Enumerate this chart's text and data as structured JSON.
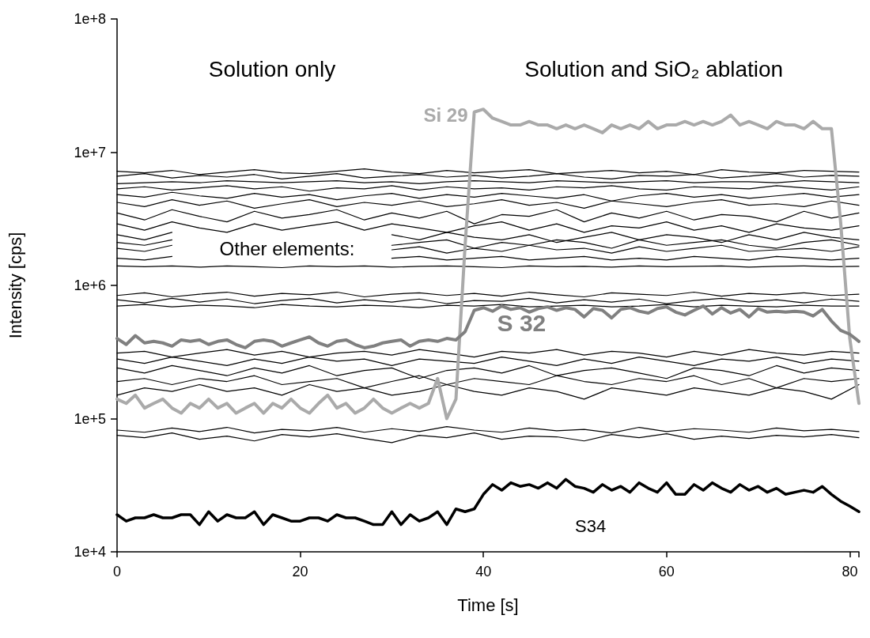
{
  "chart_data": {
    "type": "line",
    "xlabel": "Time [s]",
    "ylabel": "Intensity [cps]",
    "log": "y",
    "xlim": [
      0,
      81
    ],
    "xticks": [
      0,
      20,
      40,
      60,
      80
    ],
    "ylim": [
      10000,
      100000000
    ],
    "yticks": [
      {
        "value": 10000,
        "label": "1e+4"
      },
      {
        "value": 100000,
        "label": "1e+5"
      },
      {
        "value": 1000000,
        "label": "1e+6"
      },
      {
        "value": 10000000,
        "label": "1e+7"
      },
      {
        "value": 100000000,
        "label": "1e+8"
      }
    ],
    "grid": false,
    "legend": false,
    "marker": "none",
    "line_style": "solid",
    "annotations": [
      "Solution only",
      "Solution and SiO₂ ablation",
      "Other elements:"
    ],
    "x": [
      0,
      3,
      6,
      9,
      12,
      15,
      18,
      21,
      24,
      27,
      30,
      33,
      36,
      39,
      42,
      45,
      48,
      51,
      54,
      57,
      60,
      63,
      66,
      69,
      72,
      75,
      78,
      81
    ],
    "series": [
      {
        "color": "#000000",
        "values": [
          7200000.0,
          7000000.0,
          7300000.0,
          6800000.0,
          7100000.0,
          7400000.0,
          7000000.0,
          6900000.0,
          7200000.0,
          7500000.0,
          7100000.0,
          6900000.0,
          7300000.0,
          7000000.0,
          7200000.0,
          7400000.0,
          6900000.0,
          7100000.0,
          7300000.0,
          7000000.0,
          7200000.0,
          6800000.0,
          7400000.0,
          7100000.0,
          7000000.0,
          7300000.0,
          7200000.0,
          7100000.0
        ]
      },
      {
        "color": "#000000",
        "values": [
          6600000.0,
          6900000.0,
          6400000.0,
          6700000.0,
          6500000.0,
          6800000.0,
          6300000.0,
          6600000.0,
          6900000.0,
          6400000.0,
          6600000.0,
          6800000.0,
          6500000.0,
          6700000.0,
          6400000.0,
          6600000.0,
          6900000.0,
          6500000.0,
          6300000.0,
          6700000.0,
          6600000.0,
          6800000.0,
          6400000.0,
          6600000.0,
          6900000.0,
          6500000.0,
          6700000.0,
          6600000.0
        ]
      },
      {
        "color": "#000000",
        "values": [
          5800000.0,
          5900000.0,
          6000000.0,
          5900000.0,
          6100000.0,
          6000000.0,
          5900000.0,
          6000000.0,
          6100000.0,
          5900000.0,
          6000000.0,
          5800000.0,
          6000000.0,
          6100000.0,
          6000000.0,
          5900000.0,
          6100000.0,
          6000000.0,
          5900000.0,
          6000000.0,
          6100000.0,
          5900000.0,
          6000000.0,
          6000000.0,
          5900000.0,
          6100000.0,
          6000000.0,
          5900000.0
        ]
      },
      {
        "color": "#000000",
        "values": [
          5300000.0,
          5500000.0,
          5200000.0,
          5400000.0,
          5600000.0,
          5300000.0,
          5500000.0,
          5100000.0,
          5400000.0,
          5300000.0,
          5600000.0,
          5200000.0,
          5500000.0,
          5300000.0,
          5400000.0,
          5200000.0,
          5500000.0,
          5400000.0,
          5600000.0,
          5300000.0,
          5200000.0,
          5500000.0,
          5400000.0,
          5300000.0,
          5600000.0,
          5400000.0,
          5200000.0,
          5500000.0
        ]
      },
      {
        "color": "#000000",
        "values": [
          4800000.0,
          4600000.0,
          5000000.0,
          4700000.0,
          4500000.0,
          4900000.0,
          4600000.0,
          4800000.0,
          4400000.0,
          4700000.0,
          4900000.0,
          4500000.0,
          4800000.0,
          4600000.0,
          4900000.0,
          4700000.0,
          4500000.0,
          4800000.0,
          4300000.0,
          4700000.0,
          4900000.0,
          4600000.0,
          4800000.0,
          4500000.0,
          4700000.0,
          4900000.0,
          4600000.0,
          4800000.0
        ]
      },
      {
        "color": "#000000",
        "values": [
          4200000.0,
          3900000.0,
          4400000.0,
          4000000.0,
          4300000.0,
          3800000.0,
          4100000.0,
          4400000.0,
          3900000.0,
          4200000.0,
          4000000.0,
          4300000.0,
          3900000.0,
          4100000.0,
          4400000.0,
          4000000.0,
          4200000.0,
          3800000.0,
          4300000.0,
          4100000.0,
          3900000.0,
          4200000.0,
          4400000.0,
          4000000.0,
          4100000.0,
          3900000.0,
          4300000.0,
          4000000.0
        ]
      },
      {
        "color": "#000000",
        "values": [
          3500000.0,
          3100000.0,
          3700000.0,
          3300000.0,
          3000000.0,
          3600000.0,
          3200000.0,
          3400000.0,
          3700000.0,
          3100000.0,
          3500000.0,
          3200000.0,
          3600000.0,
          2900000.0,
          3400000.0,
          3300000.0,
          3700000.0,
          3000000.0,
          3500000.0,
          3200000.0,
          3600000.0,
          3100000.0,
          3400000.0,
          3300000.0,
          3000000.0,
          3600000.0,
          3200000.0,
          3500000.0
        ]
      },
      {
        "color": "#000000",
        "values": [
          2900000.0,
          2600000.0,
          3000000.0,
          2700000.0,
          2500000.0,
          2900000.0,
          2600000.0,
          2800000.0,
          3000000.0,
          2600000.0,
          2900000.0,
          2700000.0,
          2500000.0,
          2800000.0,
          3000000.0,
          2600000.0,
          2900000.0,
          2500000.0,
          2800000.0,
          2700000.0,
          3000000.0,
          2600000.0,
          2800000.0,
          2500000.0,
          2900000.0,
          2700000.0,
          2600000.0,
          2800000.0
        ]
      },
      {
        "color": "#000000",
        "values": [
          2400000.0,
          2200000.0,
          2500000.0,
          null,
          null,
          null,
          null,
          null,
          null,
          null,
          2400000.0,
          2200000.0,
          2500000.0,
          2300000.0,
          2200000.0,
          2400000.0,
          2100000.0,
          2300000.0,
          2500000.0,
          2200000.0,
          2400000.0,
          2300000.0,
          2100000.0,
          2400000.0,
          2200000.0,
          2500000.0,
          2300000.0,
          2200000.0
        ]
      },
      {
        "color": "#000000",
        "values": [
          2100000.0,
          2000000.0,
          2200000.0,
          null,
          null,
          null,
          null,
          null,
          null,
          null,
          2000000.0,
          2100000.0,
          2200000.0,
          1900000.0,
          2100000.0,
          2000000.0,
          2200000.0,
          2100000.0,
          1900000.0,
          2200000.0,
          2000000.0,
          2100000.0,
          2200000.0,
          2000000.0,
          1900000.0,
          2100000.0,
          2200000.0,
          2000000.0
        ]
      },
      {
        "color": "#000000",
        "values": [
          1900000.0,
          1800000.0,
          2000000.0,
          null,
          null,
          null,
          null,
          null,
          null,
          null,
          1850000.0,
          1950000.0,
          1750000.0,
          1900000.0,
          1800000.0,
          2000000.0,
          1850000.0,
          1900000.0,
          1750000.0,
          1950000.0,
          1800000.0,
          1900000.0,
          2000000.0,
          1800000.0,
          1850000.0,
          1900000.0,
          1800000.0,
          1950000.0
        ]
      },
      {
        "color": "#000000",
        "values": [
          1600000.0,
          1550000.0,
          1650000.0,
          null,
          null,
          null,
          null,
          null,
          null,
          null,
          1600000.0,
          1650000.0,
          1550000.0,
          1600000.0,
          1650000.0,
          1550000.0,
          1600000.0,
          1650000.0,
          1550000.0,
          1600000.0,
          1550000.0,
          1650000.0,
          1600000.0,
          1550000.0,
          1650000.0,
          1600000.0,
          1550000.0,
          1600000.0
        ]
      },
      {
        "color": "#000000",
        "values": [
          1400000.0,
          1380000.0,
          1400000.0,
          1370000.0,
          1400000.0,
          1380000.0,
          1360000.0,
          1400000.0,
          1380000.0,
          1400000.0,
          1370000.0,
          1390000.0,
          1400000.0,
          1380000.0,
          1360000.0,
          1400000.0,
          1380000.0,
          1390000.0,
          1370000.0,
          1400000.0,
          1380000.0,
          1390000.0,
          1400000.0,
          1370000.0,
          1390000.0,
          1400000.0,
          1380000.0,
          1390000.0
        ]
      },
      {
        "color": "#000000",
        "values": [
          840000.0,
          880000.0,
          820000.0,
          860000.0,
          890000.0,
          830000.0,
          870000.0,
          850000.0,
          890000.0,
          820000.0,
          860000.0,
          880000.0,
          840000.0,
          870000.0,
          830000.0,
          890000.0,
          850000.0,
          820000.0,
          880000.0,
          860000.0,
          840000.0,
          890000.0,
          830000.0,
          870000.0,
          850000.0,
          880000.0,
          840000.0,
          860000.0
        ]
      },
      {
        "color": "#000000",
        "values": [
          780000.0,
          740000.0,
          800000.0,
          750000.0,
          790000.0,
          730000.0,
          770000.0,
          800000.0,
          740000.0,
          780000.0,
          750000.0,
          790000.0,
          730000.0,
          770000.0,
          760000.0,
          800000.0,
          740000.0,
          780000.0,
          750000.0,
          790000.0,
          730000.0,
          770000.0,
          800000.0,
          750000.0,
          780000.0,
          740000.0,
          790000.0,
          760000.0
        ]
      },
      {
        "color": "#000000",
        "values": [
          700000.0,
          720000.0,
          690000.0,
          710000.0,
          700000.0,
          680000.0,
          720000.0,
          700000.0,
          690000.0,
          710000.0,
          700000.0,
          680000.0,
          710000.0,
          700000.0,
          720000.0,
          690000.0,
          700000.0,
          710000.0,
          690000.0,
          700000.0,
          720000.0,
          690000.0,
          710000.0,
          700000.0,
          690000.0,
          710000.0,
          700000.0,
          700000.0
        ]
      },
      {
        "color": "#000000",
        "values": [
          310000.0,
          320000.0,
          290000.0,
          310000.0,
          330000.0,
          300000.0,
          320000.0,
          290000.0,
          310000.0,
          320000.0,
          300000.0,
          330000.0,
          310000.0,
          290000.0,
          320000.0,
          310000.0,
          330000.0,
          300000.0,
          320000.0,
          310000.0,
          290000.0,
          320000.0,
          300000.0,
          330000.0,
          310000.0,
          300000.0,
          320000.0,
          310000.0
        ]
      },
      {
        "color": "#000000",
        "values": [
          280000.0,
          260000.0,
          290000.0,
          270000.0,
          250000.0,
          280000.0,
          260000.0,
          290000.0,
          270000.0,
          280000.0,
          250000.0,
          280000.0,
          270000.0,
          260000.0,
          290000.0,
          270000.0,
          250000.0,
          280000.0,
          260000.0,
          290000.0,
          270000.0,
          250000.0,
          280000.0,
          270000.0,
          290000.0,
          260000.0,
          280000.0,
          270000.0
        ]
      },
      {
        "color": "#000000",
        "values": [
          240000.0,
          220000.0,
          250000.0,
          230000.0,
          210000.0,
          240000.0,
          220000.0,
          250000.0,
          210000.0,
          230000.0,
          240000.0,
          200000.0,
          230000.0,
          240000.0,
          220000.0,
          250000.0,
          210000.0,
          230000.0,
          240000.0,
          220000.0,
          200000.0,
          240000.0,
          230000.0,
          210000.0,
          250000.0,
          220000.0,
          240000.0,
          230000.0
        ]
      },
      {
        "color": "#000000",
        "values": [
          190000.0,
          200000.0,
          180000.0,
          200000.0,
          190000.0,
          210000.0,
          180000.0,
          190000.0,
          200000.0,
          170000.0,
          190000.0,
          210000.0,
          180000.0,
          200000.0,
          190000.0,
          180000.0,
          210000.0,
          190000.0,
          180000.0,
          200000.0,
          190000.0,
          210000.0,
          180000.0,
          200000.0,
          170000.0,
          200000.0,
          190000.0,
          200000.0
        ]
      },
      {
        "color": "#000000",
        "values": [
          150000.0,
          170000.0,
          160000.0,
          180000.0,
          160000.0,
          170000.0,
          150000.0,
          180000.0,
          160000.0,
          170000.0,
          150000.0,
          160000.0,
          180000.0,
          160000.0,
          150000.0,
          170000.0,
          160000.0,
          140000.0,
          170000.0,
          160000.0,
          150000.0,
          170000.0,
          160000.0,
          150000.0,
          170000.0,
          160000.0,
          140000.0,
          180000.0
        ]
      },
      {
        "color": "#000000",
        "values": [
          82000.0,
          79000.0,
          85000.0,
          80000.0,
          86000.0,
          78000.0,
          83000.0,
          81000.0,
          86000.0,
          79000.0,
          84000.0,
          80000.0,
          87000.0,
          82000.0,
          79000.0,
          85000.0,
          81000.0,
          83000.0,
          78000.0,
          86000.0,
          80000.0,
          84000.0,
          82000.0,
          79000.0,
          85000.0,
          81000.0,
          83000.0,
          80000.0
        ]
      },
      {
        "color": "#000000",
        "values": [
          75000.0,
          72000.0,
          78000.0,
          70000.0,
          74000.0,
          68000.0,
          76000.0,
          73000.0,
          77000.0,
          71000.0,
          66000.0,
          75000.0,
          72000.0,
          78000.0,
          70000.0,
          74000.0,
          73000.0,
          68000.0,
          76000.0,
          72000.0,
          77000.0,
          70000.0,
          74000.0,
          71000.0,
          75000.0,
          73000.0,
          76000.0,
          72000.0
        ]
      },
      {
        "name": "Si 29",
        "color": "#aaaaaa",
        "x": [
          0,
          1,
          2,
          3,
          4,
          5,
          6,
          7,
          8,
          9,
          10,
          11,
          12,
          13,
          14,
          15,
          16,
          17,
          18,
          19,
          20,
          21,
          22,
          23,
          24,
          25,
          26,
          27,
          28,
          29,
          30,
          31,
          32,
          33,
          34,
          35,
          36,
          37,
          38,
          39,
          40,
          41,
          42,
          43,
          44,
          45,
          46,
          47,
          48,
          49,
          50,
          51,
          52,
          53,
          54,
          55,
          56,
          57,
          58,
          59,
          60,
          61,
          62,
          63,
          64,
          65,
          66,
          67,
          68,
          69,
          70,
          71,
          72,
          73,
          74,
          75,
          76,
          77,
          78,
          79,
          80,
          81
        ],
        "values": [
          140000.0,
          130000.0,
          150000.0,
          120000.0,
          130000.0,
          140000.0,
          120000.0,
          110000.0,
          130000.0,
          120000.0,
          140000.0,
          120000.0,
          130000.0,
          110000.0,
          120000.0,
          130000.0,
          110000.0,
          130000.0,
          120000.0,
          140000.0,
          120000.0,
          110000.0,
          130000.0,
          150000.0,
          120000.0,
          130000.0,
          110000.0,
          120000.0,
          140000.0,
          120000.0,
          110000.0,
          120000.0,
          130000.0,
          120000.0,
          130000.0,
          200000.0,
          100000.0,
          140000.0,
          2000000.0,
          20000000.0,
          21000000.0,
          18000000.0,
          17000000.0,
          16000000.0,
          16000000.0,
          17000000.0,
          16000000.0,
          16000000.0,
          15000000.0,
          16000000.0,
          15000000.0,
          16000000.0,
          15000000.0,
          14000000.0,
          16000000.0,
          15000000.0,
          16000000.0,
          15000000.0,
          17000000.0,
          15000000.0,
          16000000.0,
          16000000.0,
          17000000.0,
          16000000.0,
          17000000.0,
          16000000.0,
          17000000.0,
          19000000.0,
          16000000.0,
          17000000.0,
          16000000.0,
          15000000.0,
          17000000.0,
          16000000.0,
          16000000.0,
          15000000.0,
          17000000.0,
          15000000.0,
          15000000.0,
          3000000.0,
          400000.0,
          130000.0
        ]
      },
      {
        "name": "S 32",
        "color": "#808080",
        "x": [
          0,
          1,
          2,
          3,
          4,
          5,
          6,
          7,
          8,
          9,
          10,
          11,
          12,
          13,
          14,
          15,
          16,
          17,
          18,
          19,
          20,
          21,
          22,
          23,
          24,
          25,
          26,
          27,
          28,
          29,
          30,
          31,
          32,
          33,
          34,
          35,
          36,
          37,
          38,
          39,
          40,
          41,
          42,
          43,
          44,
          45,
          46,
          47,
          48,
          49,
          50,
          51,
          52,
          53,
          54,
          55,
          56,
          57,
          58,
          59,
          60,
          61,
          62,
          63,
          64,
          65,
          66,
          67,
          68,
          69,
          70,
          71,
          72,
          73,
          74,
          75,
          76,
          77,
          78,
          79,
          80,
          81
        ],
        "values": [
          400000.0,
          360000.0,
          420000.0,
          370000.0,
          380000.0,
          370000.0,
          350000.0,
          390000.0,
          380000.0,
          390000.0,
          360000.0,
          380000.0,
          390000.0,
          360000.0,
          340000.0,
          380000.0,
          390000.0,
          380000.0,
          350000.0,
          370000.0,
          390000.0,
          410000.0,
          370000.0,
          350000.0,
          380000.0,
          390000.0,
          360000.0,
          340000.0,
          350000.0,
          370000.0,
          380000.0,
          390000.0,
          350000.0,
          380000.0,
          390000.0,
          380000.0,
          400000.0,
          390000.0,
          450000.0,
          650000.0,
          680000.0,
          640000.0,
          700000.0,
          660000.0,
          680000.0,
          630000.0,
          670000.0,
          690000.0,
          650000.0,
          680000.0,
          660000.0,
          580000.0,
          670000.0,
          650000.0,
          570000.0,
          660000.0,
          680000.0,
          640000.0,
          620000.0,
          670000.0,
          690000.0,
          630000.0,
          600000.0,
          650000.0,
          700000.0,
          610000.0,
          680000.0,
          620000.0,
          660000.0,
          580000.0,
          670000.0,
          630000.0,
          640000.0,
          630000.0,
          640000.0,
          630000.0,
          590000.0,
          660000.0,
          540000.0,
          460000.0,
          430000.0,
          380000.0
        ]
      },
      {
        "name": "S34",
        "color": "#000000",
        "x": [
          0,
          1,
          2,
          3,
          4,
          5,
          6,
          7,
          8,
          9,
          10,
          11,
          12,
          13,
          14,
          15,
          16,
          17,
          18,
          19,
          20,
          21,
          22,
          23,
          24,
          25,
          26,
          27,
          28,
          29,
          30,
          31,
          32,
          33,
          34,
          35,
          36,
          37,
          38,
          39,
          40,
          41,
          42,
          43,
          44,
          45,
          46,
          47,
          48,
          49,
          50,
          51,
          52,
          53,
          54,
          55,
          56,
          57,
          58,
          59,
          60,
          61,
          62,
          63,
          64,
          65,
          66,
          67,
          68,
          69,
          70,
          71,
          72,
          73,
          74,
          75,
          76,
          77,
          78,
          79,
          80,
          81
        ],
        "values": [
          19000.0,
          17000.0,
          18000.0,
          18000.0,
          19000.0,
          18000.0,
          18000.0,
          19000.0,
          19000.0,
          16000.0,
          20000.0,
          17000.0,
          19000.0,
          18000.0,
          18000.0,
          20000.0,
          16000.0,
          19000.0,
          18000.0,
          17000.0,
          17000.0,
          18000.0,
          18000.0,
          17000.0,
          19000.0,
          18000.0,
          18000.0,
          17000.0,
          16000.0,
          16000.0,
          20000.0,
          16000.0,
          19000.0,
          17000.0,
          18000.0,
          20000.0,
          16000.0,
          21000.0,
          20000.0,
          21000.0,
          27000.0,
          32000.0,
          29000.0,
          33000.0,
          31000.0,
          32000.0,
          30000.0,
          33000.0,
          30000.0,
          35000.0,
          31000.0,
          30000.0,
          28000.0,
          32000.0,
          29000.0,
          31000.0,
          28000.0,
          33000.0,
          30000.0,
          28000.0,
          33000.0,
          27000.0,
          27000.0,
          32000.0,
          29000.0,
          33000.0,
          30000.0,
          28000.0,
          32000.0,
          29000.0,
          31000.0,
          28000.0,
          30000.0,
          27000.0,
          28000.0,
          29000.0,
          28000.0,
          31000.0,
          27000.0,
          24000.0,
          22000.0,
          20000.0
        ]
      }
    ]
  }
}
